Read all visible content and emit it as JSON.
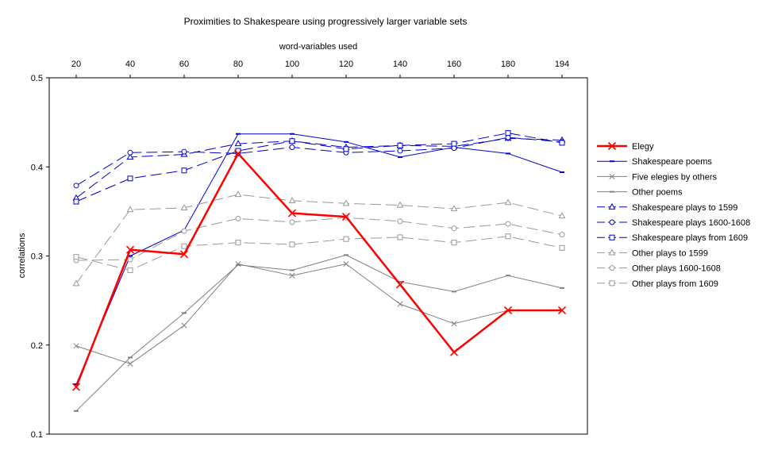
{
  "chart_data": {
    "type": "line",
    "title": "Proximities to Shakespeare using progressively larger variable sets",
    "xlabel": "word-variables used",
    "ylabel": "correlations",
    "x": [
      20,
      40,
      60,
      80,
      100,
      120,
      140,
      160,
      180,
      194
    ],
    "ylim": [
      0.1,
      0.5
    ],
    "yticks": [
      "0.1",
      "0.2",
      "0.3",
      "0.4",
      "0.5"
    ],
    "x_axis_position": "top",
    "grid": false,
    "legend_position": "right",
    "series": [
      {
        "name": "Elegy",
        "color": "#ff0000",
        "marker": "x",
        "dash": "solid",
        "width": 2.5,
        "values": [
          0.153,
          0.307,
          0.302,
          0.415,
          0.348,
          0.344,
          0.268,
          0.192,
          0.239,
          0.239
        ]
      },
      {
        "name": "Shakespeare poems",
        "color": "#0000cc",
        "marker": "dash",
        "dash": "solid",
        "width": 1,
        "values": [
          0.156,
          0.3,
          0.329,
          0.437,
          0.437,
          0.428,
          0.411,
          0.422,
          0.415,
          0.394
        ]
      },
      {
        "name": "Five elegies by others",
        "color": "#808080",
        "marker": "x",
        "dash": "solid",
        "width": 1,
        "values": [
          0.199,
          0.179,
          0.222,
          0.291,
          0.278,
          0.291,
          0.246,
          0.224,
          0.239,
          0.239
        ]
      },
      {
        "name": "Other poems",
        "color": "#808080",
        "marker": "dash",
        "dash": "solid",
        "width": 1,
        "values": [
          0.126,
          0.186,
          0.236,
          0.29,
          0.284,
          0.301,
          0.271,
          0.26,
          0.278,
          0.264
        ]
      },
      {
        "name": "Shakespeare plays to 1599",
        "color": "#0000cc",
        "marker": "triangle",
        "dash": "long",
        "width": 1,
        "values": [
          0.365,
          0.411,
          0.414,
          0.426,
          0.429,
          0.422,
          0.424,
          0.423,
          0.432,
          0.43
        ]
      },
      {
        "name": "Shakespeare plays 1600-1608",
        "color": "#0000cc",
        "marker": "circle",
        "dash": "long",
        "width": 1,
        "values": [
          0.379,
          0.416,
          0.417,
          0.415,
          0.422,
          0.416,
          0.418,
          0.421,
          0.433,
          0.428
        ]
      },
      {
        "name": "Shakespeare plays from 1609",
        "color": "#0000cc",
        "marker": "square",
        "dash": "long",
        "width": 1,
        "values": [
          0.361,
          0.387,
          0.396,
          0.418,
          0.429,
          0.42,
          0.424,
          0.426,
          0.438,
          0.427
        ]
      },
      {
        "name": "Other plays to 1599",
        "color": "#999999",
        "marker": "triangle",
        "dash": "long",
        "width": 1,
        "values": [
          0.269,
          0.352,
          0.354,
          0.369,
          0.362,
          0.359,
          0.357,
          0.353,
          0.36,
          0.345
        ]
      },
      {
        "name": "Other plays 1600-1608",
        "color": "#999999",
        "marker": "circle",
        "dash": "long",
        "width": 1,
        "values": [
          0.295,
          0.296,
          0.328,
          0.342,
          0.338,
          0.343,
          0.339,
          0.331,
          0.336,
          0.324
        ]
      },
      {
        "name": "Other plays from 1609",
        "color": "#999999",
        "marker": "square",
        "dash": "long",
        "width": 1,
        "values": [
          0.299,
          0.284,
          0.311,
          0.315,
          0.313,
          0.319,
          0.321,
          0.315,
          0.322,
          0.309
        ]
      }
    ]
  }
}
